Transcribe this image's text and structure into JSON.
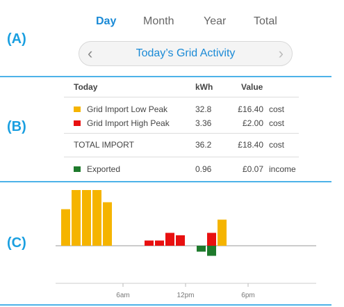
{
  "section_labels": {
    "a": "(A)",
    "b": "(B)",
    "c": "(C)"
  },
  "tabs": [
    {
      "label": "Day",
      "active": true
    },
    {
      "label": "Month",
      "active": false
    },
    {
      "label": "Year",
      "active": false
    },
    {
      "label": "Total",
      "active": false
    }
  ],
  "navigator": {
    "title": "Today’s Grid Activity",
    "prev_icon": "chevron-left-icon",
    "next_icon": "chevron-right-icon"
  },
  "table": {
    "headers": {
      "period": "Today",
      "kwh": "kWh",
      "value": "Value"
    },
    "rows": [
      {
        "swatch_color": "#f5b400",
        "label": "Grid Import Low Peak",
        "kwh": "32.8",
        "value": "£16.40",
        "type": "cost"
      },
      {
        "swatch_color": "#e81010",
        "label": "Grid Import High Peak",
        "kwh": "3.36",
        "value": "£2.00",
        "type": "cost"
      }
    ],
    "total": {
      "label": "TOTAL IMPORT",
      "kwh": "36.2",
      "value": "£18.40",
      "type": "cost"
    },
    "export": {
      "swatch_color": "#1e7a2c",
      "label": "Exported",
      "kwh": "0.96",
      "value": "£0.07",
      "type": "income"
    }
  },
  "colors": {
    "accent": "#1a8ad6",
    "low_peak": "#f5b400",
    "high_peak": "#e81010",
    "exported": "#1e7a2c",
    "divider": "#4db2e8"
  },
  "chart_data": {
    "type": "bar",
    "x_labels": [
      "6am",
      "12pm",
      "6pm"
    ],
    "series": [
      {
        "name": "Grid Import Low Peak",
        "color": "#f5b400",
        "points": [
          {
            "hour": 0.5,
            "value": 1.05
          },
          {
            "hour": 1.5,
            "value": 1.6
          },
          {
            "hour": 2.5,
            "value": 1.6
          },
          {
            "hour": 3.5,
            "value": 1.6
          },
          {
            "hour": 4.5,
            "value": 1.25
          },
          {
            "hour": 15.5,
            "value": 0.75
          }
        ]
      },
      {
        "name": "Grid Import High Peak",
        "color": "#e81010",
        "points": [
          {
            "hour": 8.5,
            "value": 0.15
          },
          {
            "hour": 9.5,
            "value": 0.15
          },
          {
            "hour": 10.5,
            "value": 0.37
          },
          {
            "hour": 11.5,
            "value": 0.3
          },
          {
            "hour": 14.5,
            "value": 0.37
          }
        ]
      },
      {
        "name": "Exported",
        "color": "#1e7a2c",
        "points": [
          {
            "hour": 13.5,
            "value": -0.17
          },
          {
            "hour": 14.5,
            "value": -0.29
          }
        ]
      }
    ]
  }
}
